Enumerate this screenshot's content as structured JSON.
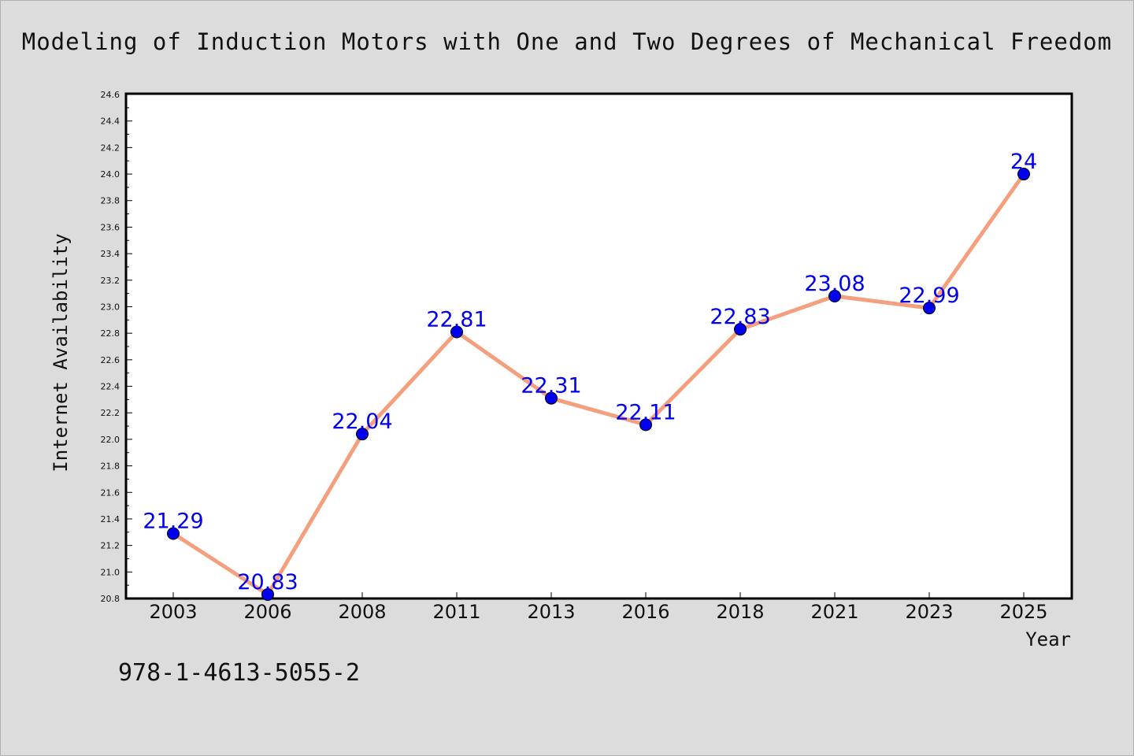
{
  "chart_data": {
    "type": "line",
    "title": "Modeling of Induction Motors with One and Two Degrees of Mechanical Freedom",
    "xlabel": "Year",
    "ylabel": "Internet Availability",
    "categories": [
      "2003",
      "2006",
      "2008",
      "2011",
      "2013",
      "2016",
      "2018",
      "2021",
      "2023",
      "2025"
    ],
    "values": [
      21.29,
      20.83,
      22.04,
      22.81,
      22.31,
      22.11,
      22.83,
      23.08,
      22.99,
      24
    ],
    "data_labels": [
      "21.29",
      "20.83",
      "22.04",
      "22.81",
      "22.31",
      "22.11",
      "22.83",
      "23.08",
      "22.99",
      "24"
    ],
    "ylim": [
      20.8,
      24.6
    ],
    "yticks": [
      "20.8",
      "21.0",
      "21.2",
      "21.4",
      "21.6",
      "21.8",
      "22.0",
      "22.2",
      "22.4",
      "22.6",
      "22.8",
      "23.0",
      "23.2",
      "23.4",
      "23.6",
      "23.8",
      "24.0",
      "24.2",
      "24.4",
      "24.6"
    ],
    "grid": false,
    "legend": "none",
    "line_color": "#f4a07e",
    "marker_color": "#0000ee",
    "label_color": "#0000ee"
  },
  "footer": {
    "isbn": "978-1-4613-5055-2"
  }
}
